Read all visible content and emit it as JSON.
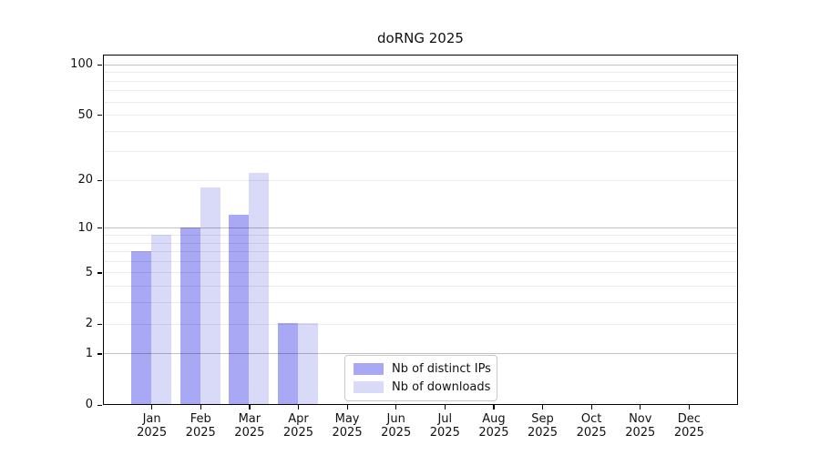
{
  "chart_data": {
    "type": "bar",
    "title": "doRNG 2025",
    "categories": [
      "Jan",
      "Feb",
      "Mar",
      "Apr",
      "May",
      "Jun",
      "Jul",
      "Aug",
      "Sep",
      "Oct",
      "Nov",
      "Dec"
    ],
    "category_sublabel": "2025",
    "series": [
      {
        "name": "Nb of distinct IPs",
        "color": "#a8a8f5",
        "values": [
          7,
          10,
          12,
          2,
          0,
          0,
          0,
          0,
          0,
          0,
          0,
          0
        ]
      },
      {
        "name": "Nb of downloads",
        "color": "#d9d9f8",
        "values": [
          9,
          18,
          22,
          2,
          0,
          0,
          0,
          0,
          0,
          0,
          0,
          0
        ]
      }
    ],
    "yscale": "log1p",
    "yticks": [
      0,
      1,
      2,
      5,
      10,
      20,
      50,
      100
    ],
    "ylim": [
      0,
      115
    ],
    "grid": true,
    "minor_grid_values": [
      3,
      4,
      6,
      7,
      8,
      9,
      30,
      40,
      60,
      70,
      80,
      90
    ],
    "labeled_grid_values": [
      2,
      5,
      20,
      50
    ],
    "major_grid_values": [
      1,
      10,
      100
    ],
    "legend_position": "lower center",
    "colors": {
      "major_gridline": "rgba(0,0,0,0.24)",
      "minor_gridline": "rgba(0,0,0,0.08)",
      "axis": "#000000",
      "text": "#111111",
      "background": "#ffffff"
    }
  }
}
